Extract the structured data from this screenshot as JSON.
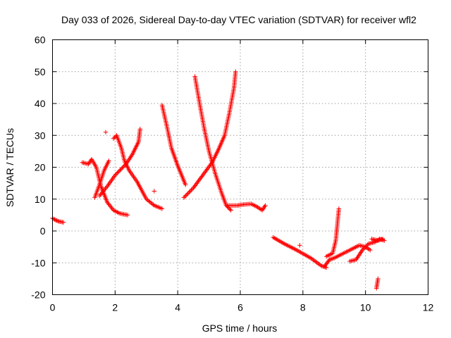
{
  "chart_data": {
    "type": "scatter",
    "title": "Day 033 of 2026, Sidereal Day-to-day VTEC variation (SDTVAR) for receiver wfl2",
    "xlabel": "GPS time / hours",
    "ylabel": "SDTVAR / TECUs",
    "xlim": [
      0,
      12
    ],
    "ylim": [
      -20,
      60
    ],
    "xticks": [
      0,
      2,
      4,
      6,
      8,
      10,
      12
    ],
    "yticks": [
      -20,
      -10,
      0,
      10,
      20,
      30,
      40,
      50,
      60
    ],
    "xtick_labels": [
      "0",
      "2",
      "4",
      "6",
      "8",
      "10",
      "12"
    ],
    "ytick_labels": [
      "-20",
      "-10",
      "0",
      "10",
      "20",
      "30",
      "40",
      "50",
      "60"
    ],
    "grid": true,
    "marker": "+",
    "color": "#ff0000",
    "tracks": [
      [
        [
          0.0,
          4.0
        ],
        [
          0.1,
          3.4
        ],
        [
          0.2,
          3.0
        ],
        [
          0.35,
          2.7
        ]
      ],
      [
        [
          0.95,
          21.5
        ],
        [
          1.15,
          21.0
        ],
        [
          1.25,
          22.5
        ],
        [
          1.4,
          20.0
        ],
        [
          1.55,
          14.0
        ],
        [
          1.75,
          9.0
        ],
        [
          1.95,
          6.5
        ],
        [
          2.15,
          5.5
        ],
        [
          2.4,
          5.0
        ]
      ],
      [
        [
          1.35,
          10.5
        ],
        [
          1.5,
          14.5
        ],
        [
          1.65,
          19.0
        ],
        [
          1.8,
          22.0
        ]
      ],
      [
        [
          1.7,
          31.0
        ]
      ],
      [
        [
          1.5,
          11.0
        ],
        [
          1.75,
          14.0
        ],
        [
          2.0,
          17.5
        ],
        [
          2.35,
          21.0
        ],
        [
          2.55,
          24.0
        ],
        [
          2.75,
          28.0
        ],
        [
          2.8,
          32.0
        ]
      ],
      [
        [
          1.95,
          29.0
        ],
        [
          2.05,
          30.0
        ],
        [
          2.2,
          26.0
        ],
        [
          2.3,
          22.0
        ],
        [
          2.45,
          19.0
        ],
        [
          2.7,
          15.5
        ],
        [
          3.0,
          10.0
        ],
        [
          3.25,
          8.0
        ],
        [
          3.5,
          7.0
        ]
      ],
      [
        [
          3.25,
          12.5
        ]
      ],
      [
        [
          3.5,
          39.5
        ],
        [
          3.65,
          33.0
        ],
        [
          3.8,
          26.0
        ],
        [
          4.0,
          20.5
        ],
        [
          4.25,
          14.5
        ]
      ],
      [
        [
          4.2,
          10.5
        ],
        [
          4.5,
          13.5
        ],
        [
          4.8,
          17.5
        ],
        [
          5.1,
          21.5
        ],
        [
          5.3,
          25.5
        ],
        [
          5.5,
          30.0
        ],
        [
          5.65,
          37.0
        ],
        [
          5.8,
          45.0
        ],
        [
          5.85,
          50.0
        ]
      ],
      [
        [
          4.55,
          48.5
        ],
        [
          4.7,
          40.0
        ],
        [
          4.85,
          32.0
        ],
        [
          5.0,
          25.0
        ],
        [
          5.2,
          18.0
        ],
        [
          5.4,
          12.0
        ],
        [
          5.55,
          8.0
        ],
        [
          5.7,
          6.5
        ]
      ],
      [
        [
          5.6,
          8.0
        ],
        [
          5.9,
          8.0
        ],
        [
          6.1,
          8.3
        ],
        [
          6.35,
          8.5
        ],
        [
          6.55,
          7.5
        ],
        [
          6.7,
          6.5
        ],
        [
          6.8,
          8.0
        ]
      ],
      [
        [
          7.05,
          -2.0
        ],
        [
          7.4,
          -4.0
        ],
        [
          7.8,
          -6.0
        ],
        [
          8.25,
          -8.5
        ],
        [
          8.6,
          -11.0
        ],
        [
          8.75,
          -11.5
        ]
      ],
      [
        [
          7.9,
          -4.5
        ]
      ],
      [
        [
          8.7,
          -11.0
        ],
        [
          8.85,
          -9.0
        ],
        [
          9.0,
          -8.5
        ],
        [
          9.3,
          -7.0
        ],
        [
          9.6,
          -5.5
        ],
        [
          9.8,
          -4.5
        ],
        [
          10.0,
          -5.0
        ],
        [
          10.15,
          -6.0
        ]
      ],
      [
        [
          8.75,
          -8.0
        ],
        [
          8.95,
          -7.0
        ],
        [
          9.05,
          -3.0
        ],
        [
          9.1,
          2.0
        ],
        [
          9.15,
          7.0
        ]
      ],
      [
        [
          9.5,
          -9.5
        ],
        [
          9.7,
          -9.0
        ],
        [
          9.9,
          -6.0
        ],
        [
          10.1,
          -4.0
        ],
        [
          10.3,
          -3.5
        ],
        [
          10.45,
          -2.5
        ],
        [
          10.6,
          -3.0
        ]
      ],
      [
        [
          10.2,
          -2.5
        ],
        [
          10.4,
          -3.0
        ],
        [
          10.55,
          -2.5
        ]
      ],
      [
        [
          10.35,
          -18.0
        ],
        [
          10.4,
          -15.0
        ]
      ]
    ]
  }
}
